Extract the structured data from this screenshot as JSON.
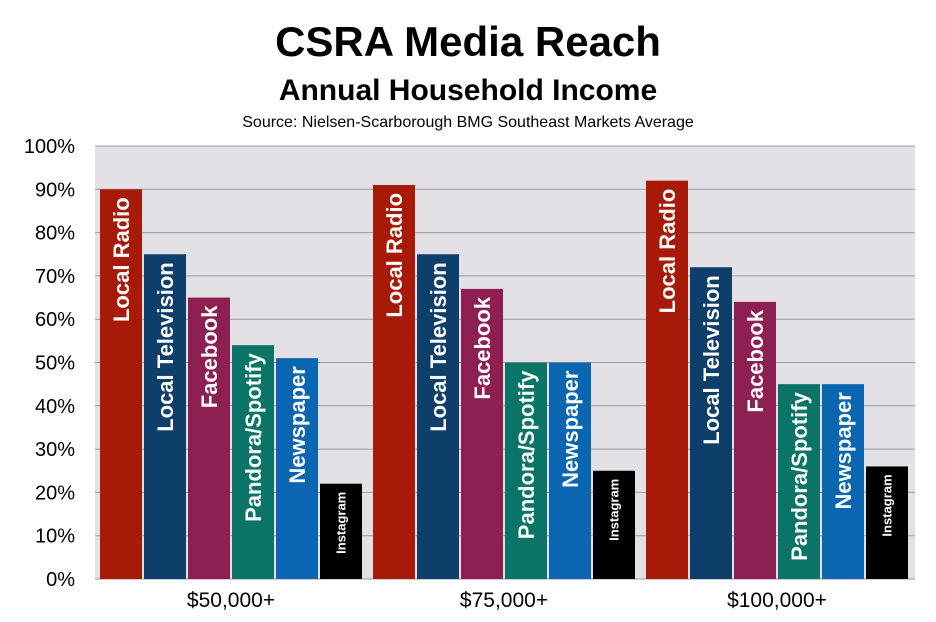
{
  "chart_data": {
    "type": "bar",
    "title": "CSRA Media Reach",
    "subtitle": "Annual Household Income",
    "source": "Source: Nielsen-Scarborough BMG Southeast Markets Average",
    "xlabel": "",
    "ylabel": "",
    "ylim": [
      0,
      100
    ],
    "yticks": [
      "0%",
      "10%",
      "20%",
      "30%",
      "40%",
      "50%",
      "60%",
      "70%",
      "80%",
      "90%",
      "100%"
    ],
    "grid": true,
    "legend": "none",
    "categories": [
      "$50,000+",
      "$75,000+",
      "$100,000+"
    ],
    "series": [
      {
        "name": "Local Radio",
        "color": "#a81a08",
        "values": [
          90,
          91,
          92
        ]
      },
      {
        "name": "Local Television",
        "color": "#0e3f6b",
        "values": [
          75,
          75,
          72
        ]
      },
      {
        "name": "Facebook",
        "color": "#8e1f52",
        "values": [
          65,
          67,
          64
        ]
      },
      {
        "name": "Pandora/Spotify",
        "color": "#0a7566",
        "values": [
          54,
          50,
          45
        ]
      },
      {
        "name": "Newspaper",
        "color": "#0a66b0",
        "values": [
          51,
          50,
          45
        ]
      },
      {
        "name": "Instagram",
        "color": "#000000",
        "values": [
          22,
          25,
          26
        ]
      }
    ],
    "plot_background": "#e3e1e6"
  }
}
